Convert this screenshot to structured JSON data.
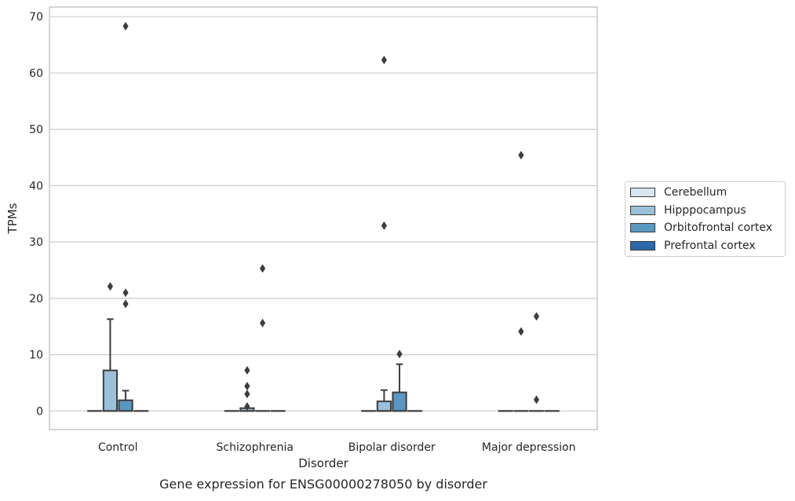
{
  "chart_data": {
    "type": "box",
    "title": "",
    "xlabel": "Disorder",
    "ylabel": "TPMs",
    "caption": "Gene expression for ENSG00000278050 by disorder",
    "ylim": [
      -3.3,
      71.7
    ],
    "yticks": [
      0,
      10,
      20,
      30,
      40,
      50,
      60,
      70
    ],
    "grid": true,
    "legend_position": "right",
    "categories": [
      "Control",
      "Schizophrenia",
      "Bipolar disorder",
      "Major depression"
    ],
    "series": [
      {
        "name": "Cerebellum",
        "color": "#d9e6f2",
        "boxes": [
          {
            "q1": 0,
            "median": 0,
            "q3": 0,
            "whislo": 0,
            "whishi": 0,
            "fliers": []
          },
          {
            "q1": 0,
            "median": 0,
            "q3": 0,
            "whislo": 0,
            "whishi": 0,
            "fliers": []
          },
          {
            "q1": 0,
            "median": 0,
            "q3": 0,
            "whislo": 0,
            "whishi": 0,
            "fliers": []
          },
          {
            "q1": 0,
            "median": 0,
            "q3": 0,
            "whislo": 0,
            "whishi": 0,
            "fliers": []
          }
        ]
      },
      {
        "name": "Hipppocampus",
        "color": "#9ac0da",
        "boxes": [
          {
            "q1": 0,
            "median": 0,
            "q3": 7.2,
            "whislo": 0,
            "whishi": 16.3,
            "fliers": [
              22.1
            ]
          },
          {
            "q1": 0,
            "median": 0,
            "q3": 0.5,
            "whislo": 0,
            "whishi": 0.5,
            "fliers": [
              0.8,
              3.0,
              4.4,
              7.2
            ]
          },
          {
            "q1": 0,
            "median": 0,
            "q3": 1.7,
            "whislo": 0,
            "whishi": 3.7,
            "fliers": [
              32.9,
              62.3
            ]
          },
          {
            "q1": 0,
            "median": 0,
            "q3": 0,
            "whislo": 0,
            "whishi": 0,
            "fliers": [
              14.1,
              45.4
            ]
          }
        ]
      },
      {
        "name": "Orbitofrontal cortex",
        "color": "#5a97c1",
        "boxes": [
          {
            "q1": 0,
            "median": 0,
            "q3": 1.9,
            "whislo": 0,
            "whishi": 3.6,
            "fliers": [
              19.0,
              21.0,
              68.3
            ]
          },
          {
            "q1": 0,
            "median": 0,
            "q3": 0,
            "whislo": 0,
            "whishi": 0,
            "fliers": [
              15.6,
              25.3
            ]
          },
          {
            "q1": 0,
            "median": 0,
            "q3": 3.3,
            "whislo": 0,
            "whishi": 8.3,
            "fliers": [
              10.1
            ]
          },
          {
            "q1": 0,
            "median": 0,
            "q3": 0,
            "whislo": 0,
            "whishi": 0,
            "fliers": [
              2.0,
              16.8
            ]
          }
        ]
      },
      {
        "name": "Prefrontal cortex",
        "color": "#2a6aaa",
        "boxes": [
          {
            "q1": 0,
            "median": 0,
            "q3": 0,
            "whislo": 0,
            "whishi": 0,
            "fliers": []
          },
          {
            "q1": 0,
            "median": 0,
            "q3": 0,
            "whislo": 0,
            "whishi": 0,
            "fliers": []
          },
          {
            "q1": 0,
            "median": 0,
            "q3": 0,
            "whislo": 0,
            "whishi": 0,
            "fliers": []
          },
          {
            "q1": 0,
            "median": 0,
            "q3": 0,
            "whislo": 0,
            "whishi": 0,
            "fliers": []
          }
        ]
      }
    ]
  },
  "colors": {
    "grid": "#cccccc",
    "axes_edge": "#cccccc",
    "box_edge": "#3d3d3d",
    "text": "#262626"
  }
}
